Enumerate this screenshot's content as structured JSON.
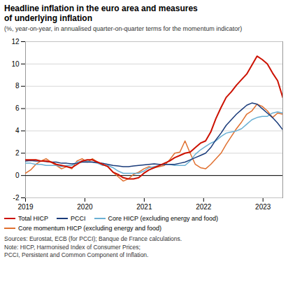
{
  "chart_data": {
    "type": "line",
    "title": "Headline inflation in the euro area and measures\nof underlying inflation",
    "subtitle": "(%, year-on-year, in annualised quarter-on-quarter terms for the momentum indicator)",
    "annotations": [
      "Sources: Eurostat, ECB (for PCCI); Banque de France calculations.",
      "Note: HICP, Harmonised Index of Consumer Prices;\nPCCI, Persistent and Common Component of Inflation."
    ],
    "x": [
      2019,
      2019.08666,
      2019.17332,
      2019.25998,
      2019.34664,
      2019.4333,
      2019.51996,
      2019.60662,
      2019.69328,
      2019.77994,
      2019.8666,
      2019.95326,
      2020.03992,
      2020.12658,
      2020.21324,
      2020.2999,
      2020.38656,
      2020.47322,
      2020.55988,
      2020.64654,
      2020.7332,
      2020.81986,
      2020.90652,
      2020.99318,
      2021.07984,
      2021.1665,
      2021.25316,
      2021.33982,
      2021.42648,
      2021.51314,
      2021.5998,
      2021.68646,
      2021.77312,
      2021.85978,
      2021.94644,
      2022.0331,
      2022.11976,
      2022.20642,
      2022.29308,
      2022.37974,
      2022.4664,
      2022.55306,
      2022.63972,
      2022.72638,
      2022.81304,
      2022.8997,
      2022.98636,
      2023.07302,
      2023.15968,
      2023.24634,
      2023.333
    ],
    "series": [
      {
        "name": "Total HICP",
        "color": "#CC1100",
        "values": [
          1.4,
          1.4,
          1.4,
          1.3,
          1.3,
          1.2,
          1.0,
          0.9,
          0.8,
          0.7,
          1.0,
          1.3,
          1.4,
          1.4,
          1.2,
          1.0,
          0.8,
          0.3,
          0.1,
          -0.2,
          -0.3,
          -0.3,
          -0.2,
          0.2,
          0.5,
          0.7,
          0.9,
          1.1,
          1.3,
          1.6,
          1.8,
          2.0,
          2.1,
          2.5,
          2.9,
          3.1,
          3.9,
          5.1,
          6.1,
          7.0,
          7.5,
          8.1,
          8.6,
          9.1,
          9.9,
          10.7,
          10.4,
          10.0,
          9.2,
          8.5,
          7.0
        ]
      },
      {
        "name": "PCCI",
        "color": "#1A3B7A",
        "values": [
          1.3,
          1.35,
          1.3,
          1.3,
          1.25,
          1.2,
          1.2,
          1.1,
          1.1,
          1.05,
          1.1,
          1.2,
          1.2,
          1.2,
          1.15,
          1.1,
          1.0,
          0.9,
          0.85,
          0.8,
          0.8,
          0.85,
          0.9,
          0.95,
          1.0,
          1.05,
          1.0,
          1.0,
          1.0,
          1.0,
          1.1,
          1.2,
          1.4,
          1.6,
          1.8,
          2.0,
          2.5,
          3.2,
          3.8,
          4.5,
          5.0,
          5.5,
          5.9,
          6.3,
          6.5,
          6.4,
          6.0,
          5.6,
          5.2,
          4.7,
          4.1
        ]
      },
      {
        "name": "Core HICP (excluding energy and food)",
        "color": "#6AB0D4",
        "values": [
          1.1,
          1.1,
          1.0,
          1.0,
          0.9,
          0.9,
          0.9,
          0.8,
          0.9,
          0.9,
          1.2,
          1.3,
          1.3,
          1.2,
          1.1,
          0.9,
          0.9,
          0.7,
          0.4,
          0.2,
          0.2,
          0.2,
          0.2,
          0.4,
          0.7,
          0.8,
          0.9,
          1.0,
          1.0,
          0.9,
          0.9,
          0.9,
          1.3,
          1.9,
          2.3,
          2.6,
          2.9,
          3.1,
          3.5,
          3.8,
          3.9,
          4.0,
          4.2,
          4.6,
          5.0,
          5.2,
          5.3,
          5.3,
          5.6,
          5.7,
          5.6
        ]
      },
      {
        "name": "Core momentum HICP (excluding energy and food)",
        "color": "#E07030",
        "values": [
          0.2,
          0.5,
          1.0,
          1.3,
          1.5,
          1.2,
          0.9,
          0.6,
          0.8,
          0.6,
          1.3,
          1.5,
          1.2,
          1.5,
          1.2,
          1.0,
          0.8,
          0.3,
          -0.1,
          -0.5,
          -0.3,
          0.1,
          0.3,
          0.6,
          0.8,
          0.7,
          0.8,
          0.9,
          1.4,
          2.0,
          2.1,
          3.1,
          2.0,
          1.0,
          0.7,
          0.6,
          1.0,
          1.5,
          2.0,
          2.8,
          3.5,
          4.2,
          4.8,
          5.5,
          5.8,
          6.4,
          6.2,
          5.8,
          5.2,
          5.6,
          5.5
        ]
      }
    ],
    "xlim": [
      2019,
      2023.333
    ],
    "xticks": [
      2019,
      2020,
      2021,
      2022,
      2023
    ],
    "ylim": [
      -2,
      12
    ],
    "yticks": [
      -2,
      0,
      2,
      4,
      6,
      8,
      10,
      12
    ],
    "grid": true
  }
}
